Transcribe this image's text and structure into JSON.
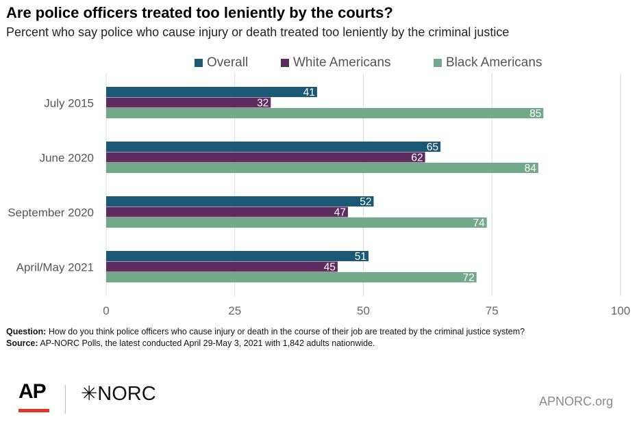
{
  "title": "Are police officers treated too leniently by the courts?",
  "subtitle": "Percent who say police who cause injury or death treated too leniently by the criminal justice",
  "legend": [
    {
      "label": "Overall",
      "color": "#1b5876"
    },
    {
      "label": "White Americans",
      "color": "#5e2c5f"
    },
    {
      "label": "Black Americans",
      "color": "#72a98a"
    }
  ],
  "chart_data": {
    "type": "bar",
    "orientation": "horizontal",
    "categories": [
      "July 2015",
      "June 2020",
      "September 2020",
      "April/May 2021"
    ],
    "series": [
      {
        "name": "Overall",
        "color": "#1b5876",
        "values": [
          41,
          65,
          52,
          51
        ]
      },
      {
        "name": "White Americans",
        "color": "#5e2c5f",
        "values": [
          32,
          62,
          47,
          45
        ]
      },
      {
        "name": "Black Americans",
        "color": "#72a98a",
        "values": [
          85,
          84,
          74,
          72
        ]
      }
    ],
    "xlim": [
      0,
      100
    ],
    "xticks": [
      0,
      25,
      50,
      75,
      100
    ],
    "grid": true,
    "legend_position": "top",
    "data_labels": true
  },
  "footnote": {
    "question_label": "Question:",
    "question_text": "How do you think police officers who cause injury or death in the course of their job are treated by the criminal justice system?",
    "source_label": "Source:",
    "source_text": "AP-NORC Polls, the latest conducted April 29-May 3, 2021 with 1,842 adults nationwide."
  },
  "logos": {
    "ap": "AP",
    "norc": "✳NORC"
  },
  "site": "APNORC.org"
}
